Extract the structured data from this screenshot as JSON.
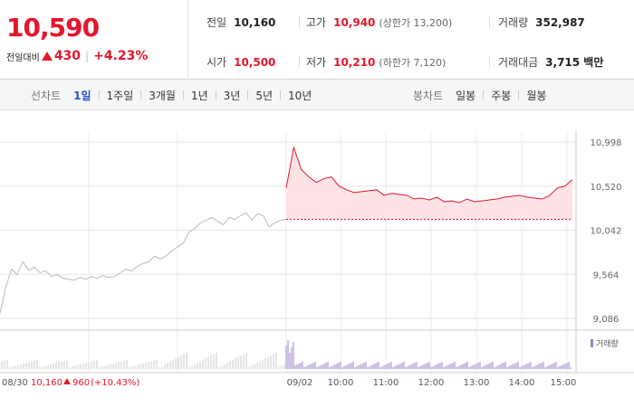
{
  "quote": {
    "price": "10,590",
    "change_label": "전일대비",
    "change_value": "430",
    "change_pct": "+4.23%",
    "direction": "up",
    "up_color": "#e3162d"
  },
  "stats": {
    "prev_close_label": "전일",
    "prev_close": "10,160",
    "open_label": "시가",
    "open": "10,500",
    "high_label": "고가",
    "high": "10,940",
    "upper_limit": "(상한가 13,200)",
    "low_label": "저가",
    "low": "10,210",
    "lower_limit": "(하한가 7,120)",
    "volume_label": "거래량",
    "volume": "352,987",
    "amount_label": "거래대금",
    "amount": "3,715 백만"
  },
  "tabs": {
    "line_label": "선차트",
    "line_periods": [
      "1일",
      "1주일",
      "3개월",
      "1년",
      "3년",
      "5년",
      "10년"
    ],
    "line_active": "1일",
    "candle_label": "봉차트",
    "candle_periods": [
      "일봉",
      "주봉",
      "월봉"
    ]
  },
  "chart_data": {
    "type": "line",
    "y_ticks": [
      "10,998",
      "10,520",
      "10,042",
      "9,564",
      "9,086"
    ],
    "ylim": [
      9086,
      10998
    ],
    "x_labels": [
      "08/30",
      "09/02",
      "10:00",
      "11:00",
      "12:00",
      "13:00",
      "14:00",
      "15:00"
    ],
    "prev_day_caption": {
      "date": "08/30",
      "close": "10,160",
      "change": "960",
      "pct": "(+10.43%)"
    },
    "reference_price": 10160,
    "volume_legend": "거래량",
    "series": [
      {
        "day": "08/30",
        "color": "#bbbbbb",
        "x": [
          0,
          0.02,
          0.04,
          0.06,
          0.08,
          0.1,
          0.12,
          0.14,
          0.16,
          0.18,
          0.2,
          0.22,
          0.24,
          0.26,
          0.28,
          0.3,
          0.32,
          0.34,
          0.36,
          0.38,
          0.4,
          0.42,
          0.44,
          0.46,
          0.48,
          0.5,
          0.52,
          0.54,
          0.56,
          0.58,
          0.6,
          0.62,
          0.64,
          0.66,
          0.68,
          0.7,
          0.72,
          0.74,
          0.76,
          0.78,
          0.8,
          0.82,
          0.84,
          0.86,
          0.88,
          0.9,
          0.92,
          0.94,
          0.96,
          0.98,
          1.0
        ],
        "values": [
          9140,
          9420,
          9620,
          9560,
          9700,
          9610,
          9640,
          9580,
          9600,
          9540,
          9560,
          9520,
          9510,
          9500,
          9530,
          9510,
          9540,
          9520,
          9550,
          9530,
          9540,
          9580,
          9620,
          9600,
          9650,
          9680,
          9700,
          9760,
          9730,
          9760,
          9820,
          9860,
          9900,
          10020,
          10060,
          10120,
          10150,
          10180,
          10140,
          10100,
          10180,
          10160,
          10200,
          10230,
          10150,
          10220,
          10200,
          10080,
          10120,
          10150,
          10160
        ]
      },
      {
        "day": "09/02",
        "color": "#e3162d",
        "times": [
          "09:00",
          "09:10",
          "09:20",
          "09:30",
          "09:40",
          "09:50",
          "10:00",
          "10:10",
          "10:20",
          "10:30",
          "10:40",
          "10:50",
          "11:00",
          "11:10",
          "11:20",
          "11:30",
          "11:40",
          "11:50",
          "12:00",
          "12:10",
          "12:20",
          "12:30",
          "12:40",
          "12:50",
          "13:00",
          "13:10",
          "13:20",
          "13:30",
          "13:40",
          "13:50",
          "14:00",
          "14:10",
          "14:20",
          "14:30",
          "14:40",
          "14:50",
          "15:00",
          "15:10",
          "15:20"
        ],
        "values": [
          10500,
          10940,
          10700,
          10620,
          10560,
          10600,
          10620,
          10520,
          10480,
          10450,
          10460,
          10470,
          10480,
          10420,
          10440,
          10430,
          10420,
          10380,
          10390,
          10370,
          10400,
          10350,
          10360,
          10340,
          10380,
          10350,
          10360,
          10370,
          10380,
          10400,
          10410,
          10420,
          10400,
          10390,
          10380,
          10420,
          10500,
          10520,
          10590
        ]
      }
    ]
  }
}
